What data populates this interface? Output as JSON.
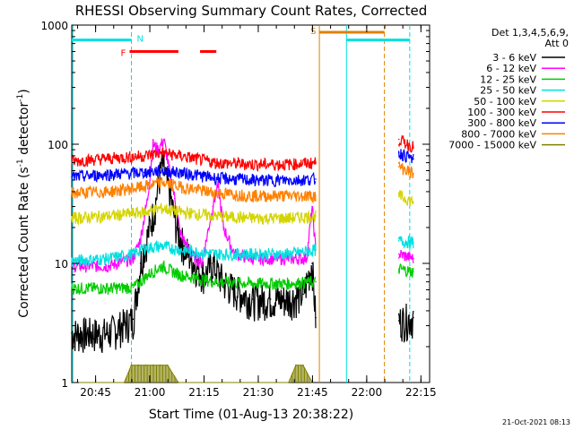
{
  "chart_data": {
    "type": "line",
    "title": "RHESSI Observing Summary Count Rates, Corrected",
    "xlabel": "Start Time (01-Aug-13 20:38:22)",
    "ylabel_main": "Corrected Count Rate (s",
    "ylabel_sup1": "-1",
    "ylabel_mid": " detector",
    "ylabel_sup2": "-1",
    "ylabel_end": ")",
    "yscale": "log",
    "ylim": [
      1,
      1000
    ],
    "x_unit": "minutes since 20:38:22",
    "xlim": [
      0,
      99
    ],
    "xticks": [
      {
        "label": "20:45",
        "x": 6.6
      },
      {
        "label": "21:00",
        "x": 21.6
      },
      {
        "label": "21:15",
        "x": 36.6
      },
      {
        "label": "21:30",
        "x": 51.6
      },
      {
        "label": "21:45",
        "x": 66.6
      },
      {
        "label": "22:00",
        "x": 81.6
      },
      {
        "label": "22:15",
        "x": 96.6
      }
    ],
    "yticks": [
      {
        "label": "1",
        "y": 1
      },
      {
        "label": "10",
        "y": 10
      },
      {
        "label": "100",
        "y": 100
      },
      {
        "label": "1000",
        "y": 1000
      }
    ],
    "legend": {
      "header1": "Det 1,3,4,5,6,9,",
      "header2": "Att 0",
      "position": "right"
    },
    "series": [
      {
        "name": "3 - 6 keV",
        "color": "#000000",
        "x": [
          0,
          10,
          17,
          19,
          21,
          23,
          25,
          27,
          29,
          31,
          33,
          35,
          37,
          39,
          42,
          45,
          50,
          55,
          60,
          64,
          66.5,
          67.5,
          90.5,
          94.5
        ],
        "values": [
          2.6,
          2.6,
          3.4,
          10,
          17,
          30,
          70,
          40,
          20,
          14,
          11,
          9,
          8,
          10,
          7,
          6,
          5,
          5,
          5,
          5.5,
          10,
          3.5,
          3.3,
          3.5
        ]
      },
      {
        "name": "6 - 12 keV",
        "color": "#ff00ff",
        "x": [
          0,
          10,
          17,
          19,
          21,
          22.5,
          24,
          25.5,
          27,
          28.5,
          30,
          33,
          36,
          39,
          40.5,
          42,
          45,
          50,
          55,
          60,
          65,
          66.5,
          67.5,
          90.5,
          94.5
        ],
        "values": [
          9.5,
          9.5,
          11,
          16,
          35,
          100,
          90,
          110,
          60,
          35,
          18,
          12,
          10,
          30,
          45,
          20,
          12,
          11,
          11,
          11,
          11,
          30,
          13,
          12,
          11
        ]
      },
      {
        "name": "12 - 25 keV",
        "color": "#00cc00",
        "x": [
          0,
          10,
          17,
          19,
          21,
          25,
          30,
          40,
          50,
          60,
          67.5,
          90.5,
          94.5
        ],
        "values": [
          6.2,
          6.2,
          6.3,
          7,
          8,
          9.5,
          8,
          7,
          6.8,
          6.8,
          7,
          9,
          8.5
        ]
      },
      {
        "name": "25 - 50 keV",
        "color": "#00e0e0",
        "x": [
          0,
          10,
          17,
          20,
          25,
          30,
          40,
          50,
          60,
          67.5,
          90.5,
          94.5
        ],
        "values": [
          10.5,
          11,
          12,
          13.5,
          14,
          13,
          12,
          12,
          12,
          13,
          15.5,
          15
        ]
      },
      {
        "name": "50 - 100 keV",
        "color": "#d4d400",
        "x": [
          0,
          10,
          20,
          25,
          30,
          40,
          50,
          60,
          67.5,
          90.5,
          94.5
        ],
        "values": [
          24,
          25,
          27,
          29,
          27,
          25,
          24,
          24,
          25,
          37,
          33
        ]
      },
      {
        "name": "100 - 300 keV",
        "color": "#ff0000",
        "x": [
          0,
          10,
          20,
          25,
          30,
          40,
          50,
          60,
          67.5,
          90.5,
          94.5
        ],
        "values": [
          72,
          76,
          80,
          85,
          80,
          70,
          68,
          68,
          70,
          110,
          95
        ]
      },
      {
        "name": "300 - 800 keV",
        "color": "#0000ff",
        "x": [
          0,
          10,
          20,
          25,
          30,
          40,
          50,
          60,
          67.5,
          90.5,
          94.5
        ],
        "values": [
          53,
          56,
          58,
          60,
          58,
          52,
          50,
          50,
          51,
          85,
          75
        ]
      },
      {
        "name": "800 - 7000 keV",
        "color": "#ff8000",
        "x": [
          0,
          10,
          20,
          25,
          30,
          40,
          50,
          60,
          67.5,
          90.5,
          94.5
        ],
        "values": [
          39,
          40,
          44,
          48,
          44,
          39,
          37,
          37,
          37,
          65,
          57
        ]
      },
      {
        "name": "7000 - 15000 keV",
        "color": "#808000",
        "x": [
          0,
          14.5,
          16.5,
          18.5,
          20.5,
          22.5,
          24.5,
          26.5,
          29.5,
          60,
          62,
          64,
          66.5
        ],
        "values": [
          1,
          1,
          1.4,
          1.4,
          1.4,
          1.4,
          1.4,
          1.4,
          1,
          1,
          1.4,
          1.4,
          1
        ]
      }
    ],
    "markers": [
      {
        "label": "N",
        "color": "#00e0e0",
        "x": 16.5,
        "x0": 0,
        "x1": 16.5,
        "y": 750,
        "type": "bar"
      },
      {
        "label": "F",
        "color": "#ff0000",
        "x": 16,
        "x0": 16,
        "x1": 29.5,
        "y": 600,
        "type": "bar"
      },
      {
        "label": "",
        "color": "#ff0000",
        "x": 35.5,
        "x0": 35.5,
        "x1": 40,
        "y": 600,
        "type": "bar"
      },
      {
        "label": "S",
        "color": "#e08000",
        "x": 68.5,
        "x0": 68.5,
        "x1": 86.5,
        "y": 870,
        "type": "bar"
      },
      {
        "label": "",
        "color": "#00e0e0",
        "x": 76,
        "x0": 76,
        "x1": 93.5,
        "y": 750,
        "type": "bar"
      }
    ],
    "vlines": [
      {
        "x": 0.3,
        "color": "#00e0e0",
        "dashed": false
      },
      {
        "x": 16.5,
        "color": "#00e0e0",
        "dashed": true
      },
      {
        "x": 68.5,
        "color": "#e08000",
        "dashed": false
      },
      {
        "x": 76,
        "color": "#00e0e0",
        "dashed": false
      },
      {
        "x": 86.5,
        "color": "#e08000",
        "dashed": true
      },
      {
        "x": 93.5,
        "color": "#00e0e0",
        "dashed": true
      }
    ],
    "grid": false
  },
  "footer": {
    "timestamp": "21-Oct-2021 08:13"
  }
}
